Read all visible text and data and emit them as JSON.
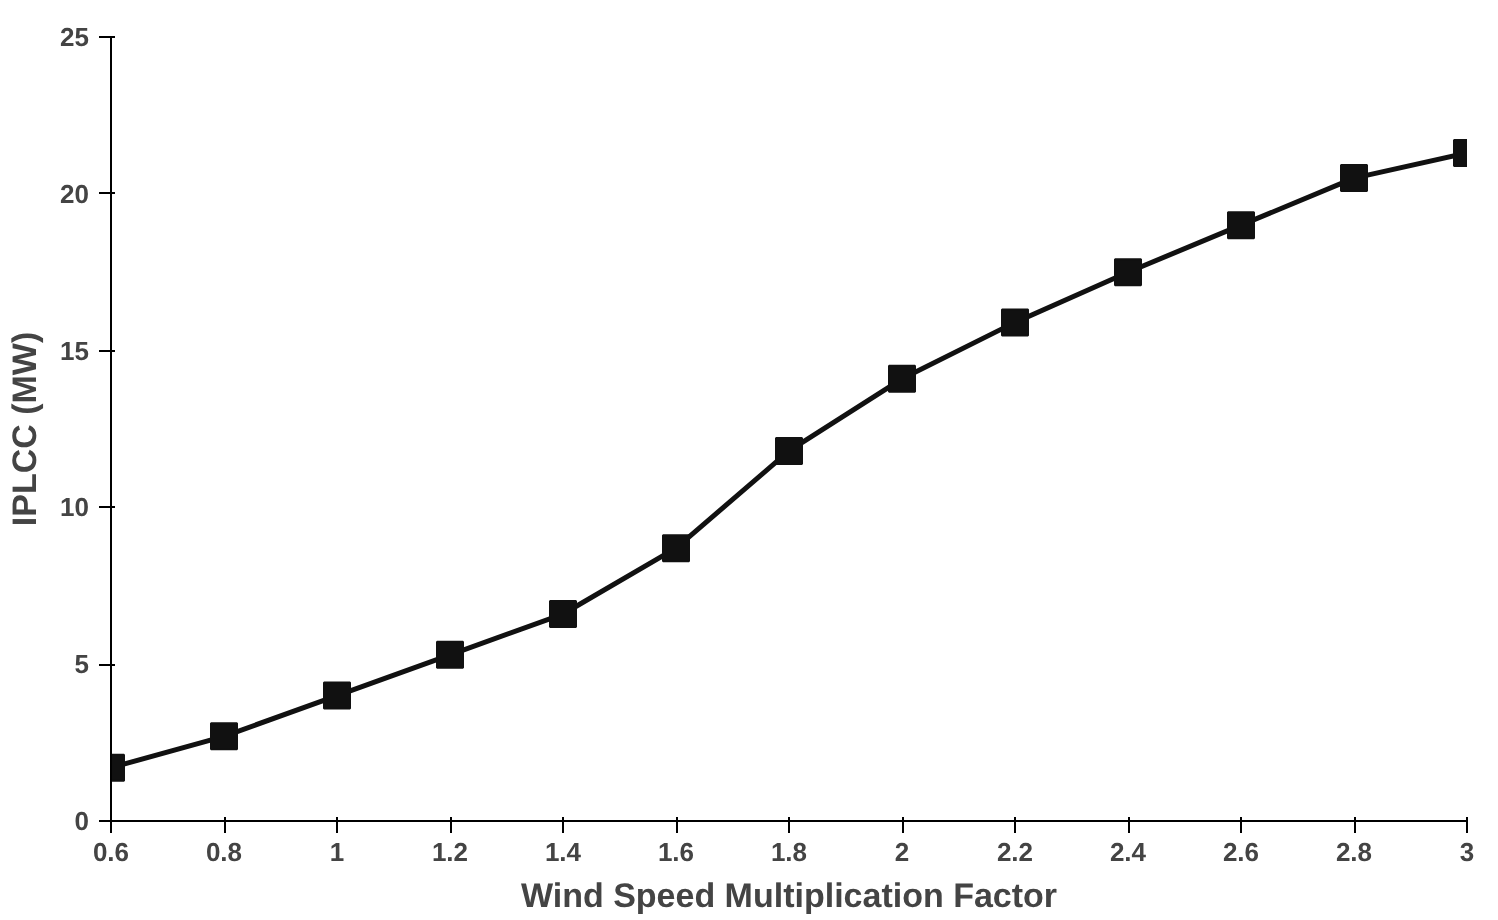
{
  "chart_data": {
    "type": "line",
    "xlabel": "Wind Speed Multiplication Factor",
    "ylabel": "IPLCC (MW)",
    "x": [
      0.6,
      0.8,
      1,
      1.2,
      1.4,
      1.6,
      1.8,
      2,
      2.2,
      2.4,
      2.6,
      2.8,
      3
    ],
    "series": [
      {
        "color": "#111111",
        "values": [
          1.7,
          2.7,
          4.0,
          5.3,
          6.6,
          8.7,
          11.8,
          14.1,
          15.9,
          17.5,
          19.0,
          20.5,
          21.3
        ]
      }
    ],
    "xlim": [
      0.6,
      3
    ],
    "xticks": [
      0.6,
      0.8,
      1,
      1.2,
      1.4,
      1.6,
      1.8,
      2,
      2.2,
      2.4,
      2.6,
      2.8,
      3
    ],
    "ylim": [
      0,
      25
    ],
    "yticks": [
      0,
      5,
      10,
      15,
      20,
      25
    ],
    "grid": false,
    "marker": "square",
    "line_style": "solid"
  }
}
